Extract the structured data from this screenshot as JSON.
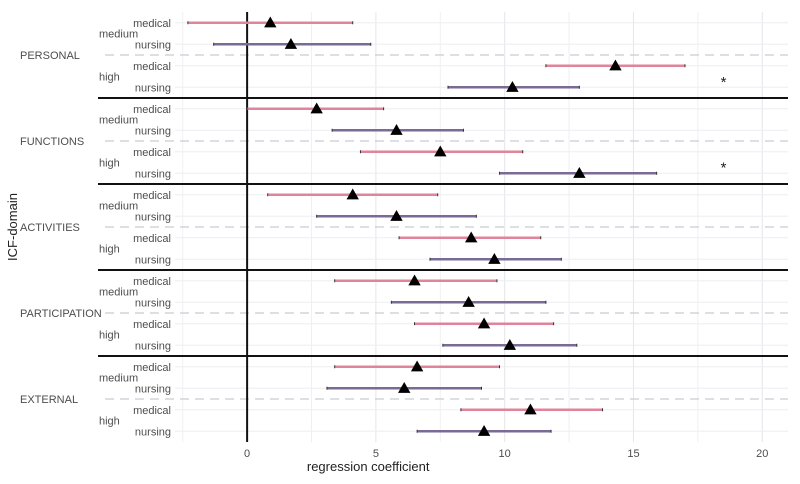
{
  "chart_data": {
    "type": "forest",
    "xlabel": "regression coefficient",
    "ylabel": "ICF-domain",
    "xlim": [
      -2.8,
      21
    ],
    "xticks": [
      0,
      5,
      10,
      15,
      20
    ],
    "xtick_labels": [
      "0",
      "5",
      "10",
      "15",
      "20"
    ],
    "reference_line": 0,
    "colors": {
      "medical": "#e0849c",
      "nursing": "#7a6a96"
    },
    "domains": [
      {
        "name": "PERSONAL",
        "groups": [
          {
            "level": "medium",
            "rows": [
              {
                "profession": "medical",
                "estimate": 0.9,
                "lower": -2.3,
                "upper": 4.1,
                "sig": ""
              },
              {
                "profession": "nursing",
                "estimate": 1.7,
                "lower": -1.3,
                "upper": 4.8,
                "sig": ""
              }
            ]
          },
          {
            "level": "high",
            "rows": [
              {
                "profession": "medical",
                "estimate": 14.3,
                "lower": 11.6,
                "upper": 17.0,
                "sig": "*"
              },
              {
                "profession": "nursing",
                "estimate": 10.3,
                "lower": 7.8,
                "upper": 12.9,
                "sig": ""
              }
            ]
          }
        ]
      },
      {
        "name": "FUNCTIONS",
        "groups": [
          {
            "level": "medium",
            "rows": [
              {
                "profession": "medical",
                "estimate": 2.7,
                "lower": 0.0,
                "upper": 5.3,
                "sig": ""
              },
              {
                "profession": "nursing",
                "estimate": 5.8,
                "lower": 3.3,
                "upper": 8.4,
                "sig": ""
              }
            ]
          },
          {
            "level": "high",
            "rows": [
              {
                "profession": "medical",
                "estimate": 7.5,
                "lower": 4.4,
                "upper": 10.7,
                "sig": ""
              },
              {
                "profession": "nursing",
                "estimate": 12.9,
                "lower": 9.8,
                "upper": 15.9,
                "sig": "*"
              }
            ]
          }
        ]
      },
      {
        "name": "ACTIVITIES",
        "groups": [
          {
            "level": "medium",
            "rows": [
              {
                "profession": "medical",
                "estimate": 4.1,
                "lower": 0.8,
                "upper": 7.4,
                "sig": ""
              },
              {
                "profession": "nursing",
                "estimate": 5.8,
                "lower": 2.7,
                "upper": 8.9,
                "sig": ""
              }
            ]
          },
          {
            "level": "high",
            "rows": [
              {
                "profession": "medical",
                "estimate": 8.7,
                "lower": 5.9,
                "upper": 11.4,
                "sig": ""
              },
              {
                "profession": "nursing",
                "estimate": 9.6,
                "lower": 7.1,
                "upper": 12.2,
                "sig": ""
              }
            ]
          }
        ]
      },
      {
        "name": "PARTICIPATION",
        "groups": [
          {
            "level": "medium",
            "rows": [
              {
                "profession": "medical",
                "estimate": 6.5,
                "lower": 3.4,
                "upper": 9.7,
                "sig": ""
              },
              {
                "profession": "nursing",
                "estimate": 8.6,
                "lower": 5.6,
                "upper": 11.6,
                "sig": ""
              }
            ]
          },
          {
            "level": "high",
            "rows": [
              {
                "profession": "medical",
                "estimate": 9.2,
                "lower": 6.5,
                "upper": 11.9,
                "sig": ""
              },
              {
                "profession": "nursing",
                "estimate": 10.2,
                "lower": 7.6,
                "upper": 12.8,
                "sig": ""
              }
            ]
          }
        ]
      },
      {
        "name": "EXTERNAL",
        "groups": [
          {
            "level": "medium",
            "rows": [
              {
                "profession": "medical",
                "estimate": 6.6,
                "lower": 3.4,
                "upper": 9.8,
                "sig": ""
              },
              {
                "profession": "nursing",
                "estimate": 6.1,
                "lower": 3.1,
                "upper": 9.1,
                "sig": ""
              }
            ]
          },
          {
            "level": "high",
            "rows": [
              {
                "profession": "medical",
                "estimate": 11.0,
                "lower": 8.3,
                "upper": 13.8,
                "sig": ""
              },
              {
                "profession": "nursing",
                "estimate": 9.2,
                "lower": 6.6,
                "upper": 11.8,
                "sig": ""
              }
            ]
          }
        ]
      }
    ]
  }
}
